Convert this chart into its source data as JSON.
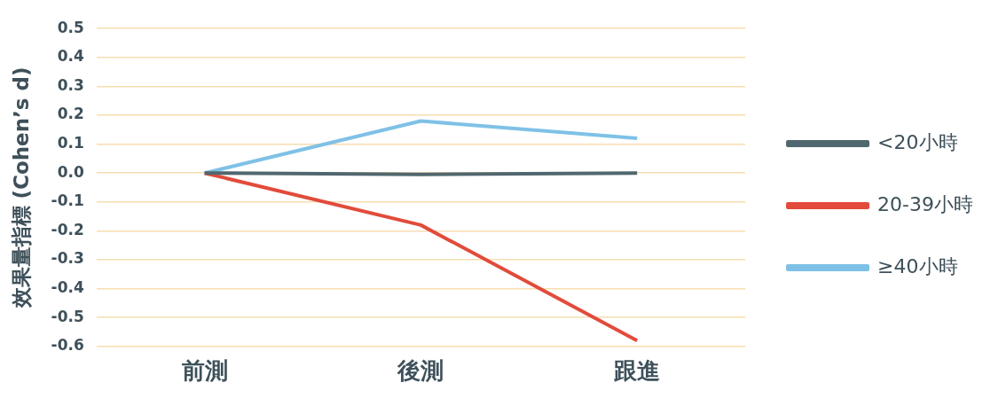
{
  "chart_data": {
    "type": "line",
    "ylabel": "效果量指標 (Cohen’s d)",
    "categories": [
      "前測",
      "後測",
      "跟進"
    ],
    "series": [
      {
        "name": "<20小時",
        "color": "#51676f",
        "values": [
          0,
          -0.005,
          0
        ]
      },
      {
        "name": "20-39小時",
        "color": "#e24b3b",
        "values": [
          0,
          -0.18,
          -0.58
        ]
      },
      {
        "name": "≥40小時",
        "color": "#7fc1e6",
        "values": [
          0,
          0.18,
          0.12
        ]
      }
    ],
    "ylim": [
      -0.6,
      0.5
    ],
    "yticks": [
      0.5,
      0.4,
      0.3,
      0.2,
      0.1,
      {
        "value": 0,
        "label": "0.0"
      },
      -0.1,
      -0.2,
      -0.3,
      -0.4,
      -0.5,
      -0.6
    ],
    "grid": "y",
    "legend": "right",
    "marker": "none",
    "line_style": "solid"
  }
}
